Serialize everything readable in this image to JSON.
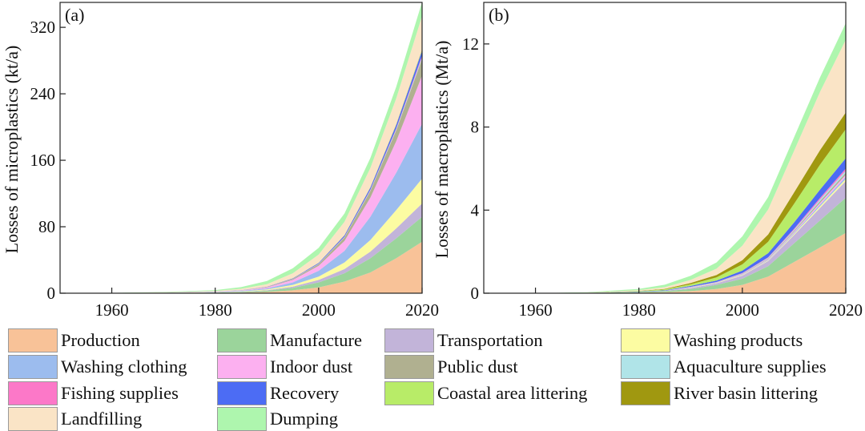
{
  "colors": {
    "Production": "#f8c298",
    "Manufacture": "#9bd49b",
    "Transportation": "#c2b4d9",
    "Washing products": "#fcfca2",
    "Washing clothing": "#9cbcee",
    "Indoor dust": "#fcb0f0",
    "Public dust": "#b0b090",
    "Aquaculture supplies": "#b0e4e8",
    "Fishing supplies": "#fc78c8",
    "Recovery": "#4c6cf4",
    "Coastal area littering": "#b8ec68",
    "River basin littering": "#a09810",
    "Landfilling": "#fae4c6",
    "Dumping": "#aef6ae"
  },
  "legend": {
    "items": [
      "Production",
      "Manufacture",
      "Transportation",
      "Washing products",
      "Washing clothing",
      "Indoor dust",
      "Public dust",
      "Aquaculture supplies",
      "Fishing supplies",
      "Recovery",
      "Coastal area littering",
      "River basin littering",
      "Landfilling",
      "Dumping"
    ]
  },
  "chart_data": [
    {
      "type": "area",
      "stacked": true,
      "panel_label": "(a)",
      "ylabel": "Losses of microplastics (kt/a)",
      "xlabel": "",
      "xlim": [
        1950,
        2020
      ],
      "ylim": [
        0,
        350
      ],
      "xticks": [
        1960,
        1980,
        2000,
        2020
      ],
      "yticks": [
        0,
        80,
        160,
        240,
        320
      ],
      "x": [
        1950,
        1960,
        1970,
        1980,
        1985,
        1990,
        1995,
        2000,
        2005,
        2010,
        2015,
        2020
      ],
      "series": [
        {
          "name": "Production",
          "values": [
            0,
            0.1,
            0.2,
            0.4,
            0.7,
            1.5,
            3.5,
            7,
            14,
            25,
            42,
            62
          ]
        },
        {
          "name": "Manufacture",
          "values": [
            0,
            0.1,
            0.2,
            0.4,
            0.8,
            1.5,
            3,
            6,
            10,
            17,
            24,
            30
          ]
        },
        {
          "name": "Transportation",
          "values": [
            0,
            0,
            0.1,
            0.2,
            0.3,
            0.7,
            1.5,
            3,
            5,
            8,
            12,
            16
          ]
        },
        {
          "name": "Washing products",
          "values": [
            0,
            0,
            0.1,
            0.2,
            0.4,
            0.8,
            2,
            4,
            8,
            14,
            22,
            30
          ]
        },
        {
          "name": "Washing clothing",
          "values": [
            0,
            0,
            0.1,
            0.3,
            0.6,
            1.3,
            3,
            7,
            14,
            28,
            45,
            66
          ]
        },
        {
          "name": "Indoor dust",
          "values": [
            0,
            0,
            0.1,
            0.3,
            0.5,
            1.2,
            3,
            6,
            12,
            23,
            38,
            58
          ]
        },
        {
          "name": "Public dust",
          "values": [
            0,
            0,
            0,
            0.1,
            0.2,
            0.4,
            1,
            2,
            4,
            8,
            13,
            20
          ]
        },
        {
          "name": "Aquaculture supplies",
          "values": [
            0,
            0,
            0,
            0,
            0.1,
            0.1,
            0.2,
            0.3,
            0.5,
            0.8,
            1.2,
            2
          ]
        },
        {
          "name": "Fishing supplies",
          "values": [
            0,
            0,
            0,
            0,
            0.1,
            0.1,
            0.2,
            0.3,
            0.5,
            0.8,
            1.2,
            2
          ]
        },
        {
          "name": "Recovery",
          "values": [
            0,
            0,
            0,
            0.1,
            0.1,
            0.2,
            0.4,
            0.8,
            1.5,
            2.5,
            4,
            6
          ]
        },
        {
          "name": "Coastal area littering",
          "values": [
            0,
            0,
            0,
            0,
            0,
            0,
            0.1,
            0.1,
            0.2,
            0.3,
            0.5,
            0.8
          ]
        },
        {
          "name": "River basin littering",
          "values": [
            0,
            0,
            0,
            0,
            0,
            0,
            0.1,
            0.1,
            0.2,
            0.3,
            0.5,
            0.8
          ]
        },
        {
          "name": "Landfilling",
          "values": [
            0,
            0.1,
            0.3,
            0.8,
            1.5,
            3,
            6,
            10,
            16,
            23,
            31,
            40
          ]
        },
        {
          "name": "Dumping",
          "values": [
            0,
            0.1,
            0.4,
            1,
            2,
            4,
            6,
            8,
            10,
            12,
            14,
            17
          ]
        }
      ]
    },
    {
      "type": "area",
      "stacked": true,
      "panel_label": "(b)",
      "ylabel": "Losses of macroplastics (Mt/a)",
      "xlabel": "",
      "xlim": [
        1950,
        2020
      ],
      "ylim": [
        0,
        14
      ],
      "xticks": [
        1960,
        1980,
        2000,
        2020
      ],
      "yticks": [
        0,
        4,
        8,
        12
      ],
      "x": [
        1950,
        1960,
        1970,
        1980,
        1985,
        1990,
        1995,
        2000,
        2005,
        2010,
        2015,
        2020
      ],
      "series": [
        {
          "name": "Production",
          "values": [
            0,
            0,
            0.01,
            0.03,
            0.05,
            0.1,
            0.2,
            0.4,
            0.8,
            1.5,
            2.2,
            2.9
          ]
        },
        {
          "name": "Manufacture",
          "values": [
            0,
            0,
            0.01,
            0.03,
            0.05,
            0.1,
            0.2,
            0.3,
            0.5,
            0.9,
            1.3,
            1.7
          ]
        },
        {
          "name": "Transportation",
          "values": [
            0,
            0,
            0,
            0.01,
            0.02,
            0.05,
            0.08,
            0.15,
            0.25,
            0.4,
            0.6,
            0.8
          ]
        },
        {
          "name": "Washing products",
          "values": [
            0,
            0,
            0,
            0,
            0,
            0.01,
            0.01,
            0.02,
            0.03,
            0.05,
            0.08,
            0.1
          ]
        },
        {
          "name": "Washing clothing",
          "values": [
            0,
            0,
            0,
            0,
            0,
            0.01,
            0.01,
            0.02,
            0.03,
            0.05,
            0.08,
            0.1
          ]
        },
        {
          "name": "Indoor dust",
          "values": [
            0,
            0,
            0,
            0,
            0,
            0.01,
            0.01,
            0.02,
            0.03,
            0.05,
            0.08,
            0.1
          ]
        },
        {
          "name": "Public dust",
          "values": [
            0,
            0,
            0,
            0,
            0,
            0.01,
            0.01,
            0.02,
            0.03,
            0.05,
            0.08,
            0.1
          ]
        },
        {
          "name": "Aquaculture supplies",
          "values": [
            0,
            0,
            0,
            0,
            0,
            0.01,
            0.01,
            0.02,
            0.03,
            0.05,
            0.08,
            0.1
          ]
        },
        {
          "name": "Fishing supplies",
          "values": [
            0,
            0,
            0,
            0,
            0,
            0.01,
            0.01,
            0.02,
            0.03,
            0.05,
            0.08,
            0.1
          ]
        },
        {
          "name": "Recovery",
          "values": [
            0,
            0,
            0,
            0.01,
            0.02,
            0.04,
            0.07,
            0.12,
            0.2,
            0.3,
            0.4,
            0.5
          ]
        },
        {
          "name": "Coastal area littering",
          "values": [
            0,
            0,
            0,
            0.02,
            0.04,
            0.08,
            0.15,
            0.3,
            0.55,
            0.9,
            1.2,
            1.4
          ]
        },
        {
          "name": "River basin littering",
          "values": [
            0,
            0,
            0,
            0.01,
            0.03,
            0.06,
            0.12,
            0.2,
            0.35,
            0.55,
            0.7,
            0.8
          ]
        },
        {
          "name": "Landfilling",
          "values": [
            0,
            0,
            0.01,
            0.04,
            0.08,
            0.15,
            0.3,
            0.7,
            1.2,
            2.0,
            2.8,
            3.5
          ]
        },
        {
          "name": "Dumping",
          "values": [
            0,
            0,
            0.02,
            0.06,
            0.12,
            0.2,
            0.3,
            0.45,
            0.6,
            0.65,
            0.7,
            0.8
          ]
        }
      ]
    }
  ]
}
